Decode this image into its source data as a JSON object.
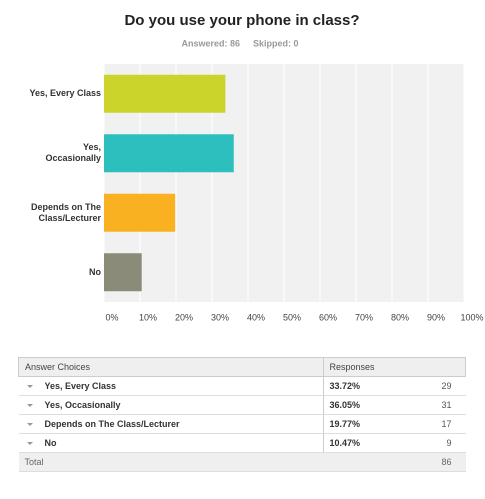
{
  "chart_data": {
    "type": "bar",
    "orientation": "horizontal",
    "title": "Do you use your phone in class?",
    "subtitle": [
      "Answered: 86",
      "Skipped: 0"
    ],
    "categories": [
      "Yes, Every Class",
      "Yes, Occasionally",
      "Depends on The Class/Lecturer",
      "No"
    ],
    "values": [
      33.72,
      36.05,
      19.77,
      10.47
    ],
    "colors": [
      "#cbd42b",
      "#2dbfbd",
      "#f9b121",
      "#8b8b7a"
    ],
    "xlim": [
      0,
      100
    ],
    "xticks": [
      {
        "value": 0,
        "label": "0%"
      },
      {
        "value": 10,
        "label": "10%"
      },
      {
        "value": 20,
        "label": "20%"
      },
      {
        "value": 30,
        "label": "30%"
      },
      {
        "value": 40,
        "label": "40%"
      },
      {
        "value": 50,
        "label": "50%"
      },
      {
        "value": 60,
        "label": "60%"
      },
      {
        "value": 70,
        "label": "70%"
      },
      {
        "value": 80,
        "label": "80%"
      },
      {
        "value": 90,
        "label": "90%"
      },
      {
        "value": 100,
        "label": "100%"
      }
    ],
    "grid": true
  },
  "table": {
    "header": [
      "Answer Choices",
      "Responses"
    ],
    "rows": [
      [
        "Yes, Every Class",
        "33.72%",
        29
      ],
      [
        "Yes, Occasionally",
        "36.05%",
        31
      ],
      [
        "Depends on The Class/Lecturer",
        "19.77%",
        17
      ],
      [
        "No",
        "10.47%",
        9
      ]
    ],
    "total": [
      "Total",
      86
    ]
  }
}
